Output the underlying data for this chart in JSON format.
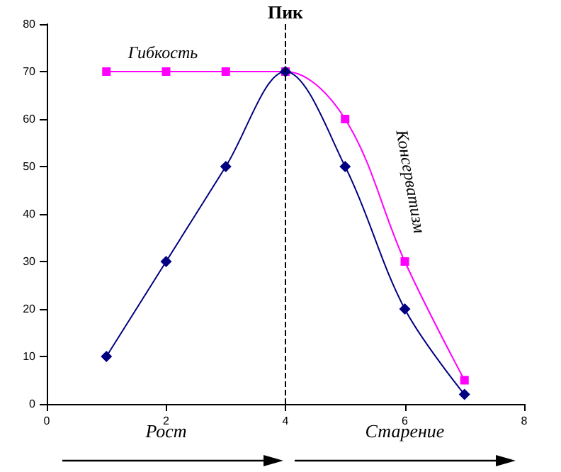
{
  "chart_data": {
    "type": "line",
    "x": [
      1,
      2,
      3,
      4,
      5,
      6,
      7
    ],
    "series": [
      {
        "color": "#000080",
        "marker": "diamond",
        "values": [
          10,
          30,
          50,
          70,
          50,
          20,
          2
        ]
      },
      {
        "color": "#ff00ff",
        "marker": "square",
        "values": [
          70,
          70,
          70,
          70,
          60,
          30,
          5
        ]
      }
    ],
    "xlim": [
      0,
      8
    ],
    "xticks": [
      0,
      2,
      4,
      6,
      8
    ],
    "ylim": [
      0,
      80
    ],
    "yticks": [
      0,
      10,
      20,
      30,
      40,
      50,
      60,
      70,
      80
    ],
    "ref_lines": [
      {
        "axis": "x",
        "value": 4,
        "label": "Пик",
        "line_style": "dashed",
        "color": "#000000"
      }
    ],
    "annotations": [
      "Гибкость",
      "Консерватизм",
      "Рост",
      "Старение"
    ],
    "grid": false
  }
}
